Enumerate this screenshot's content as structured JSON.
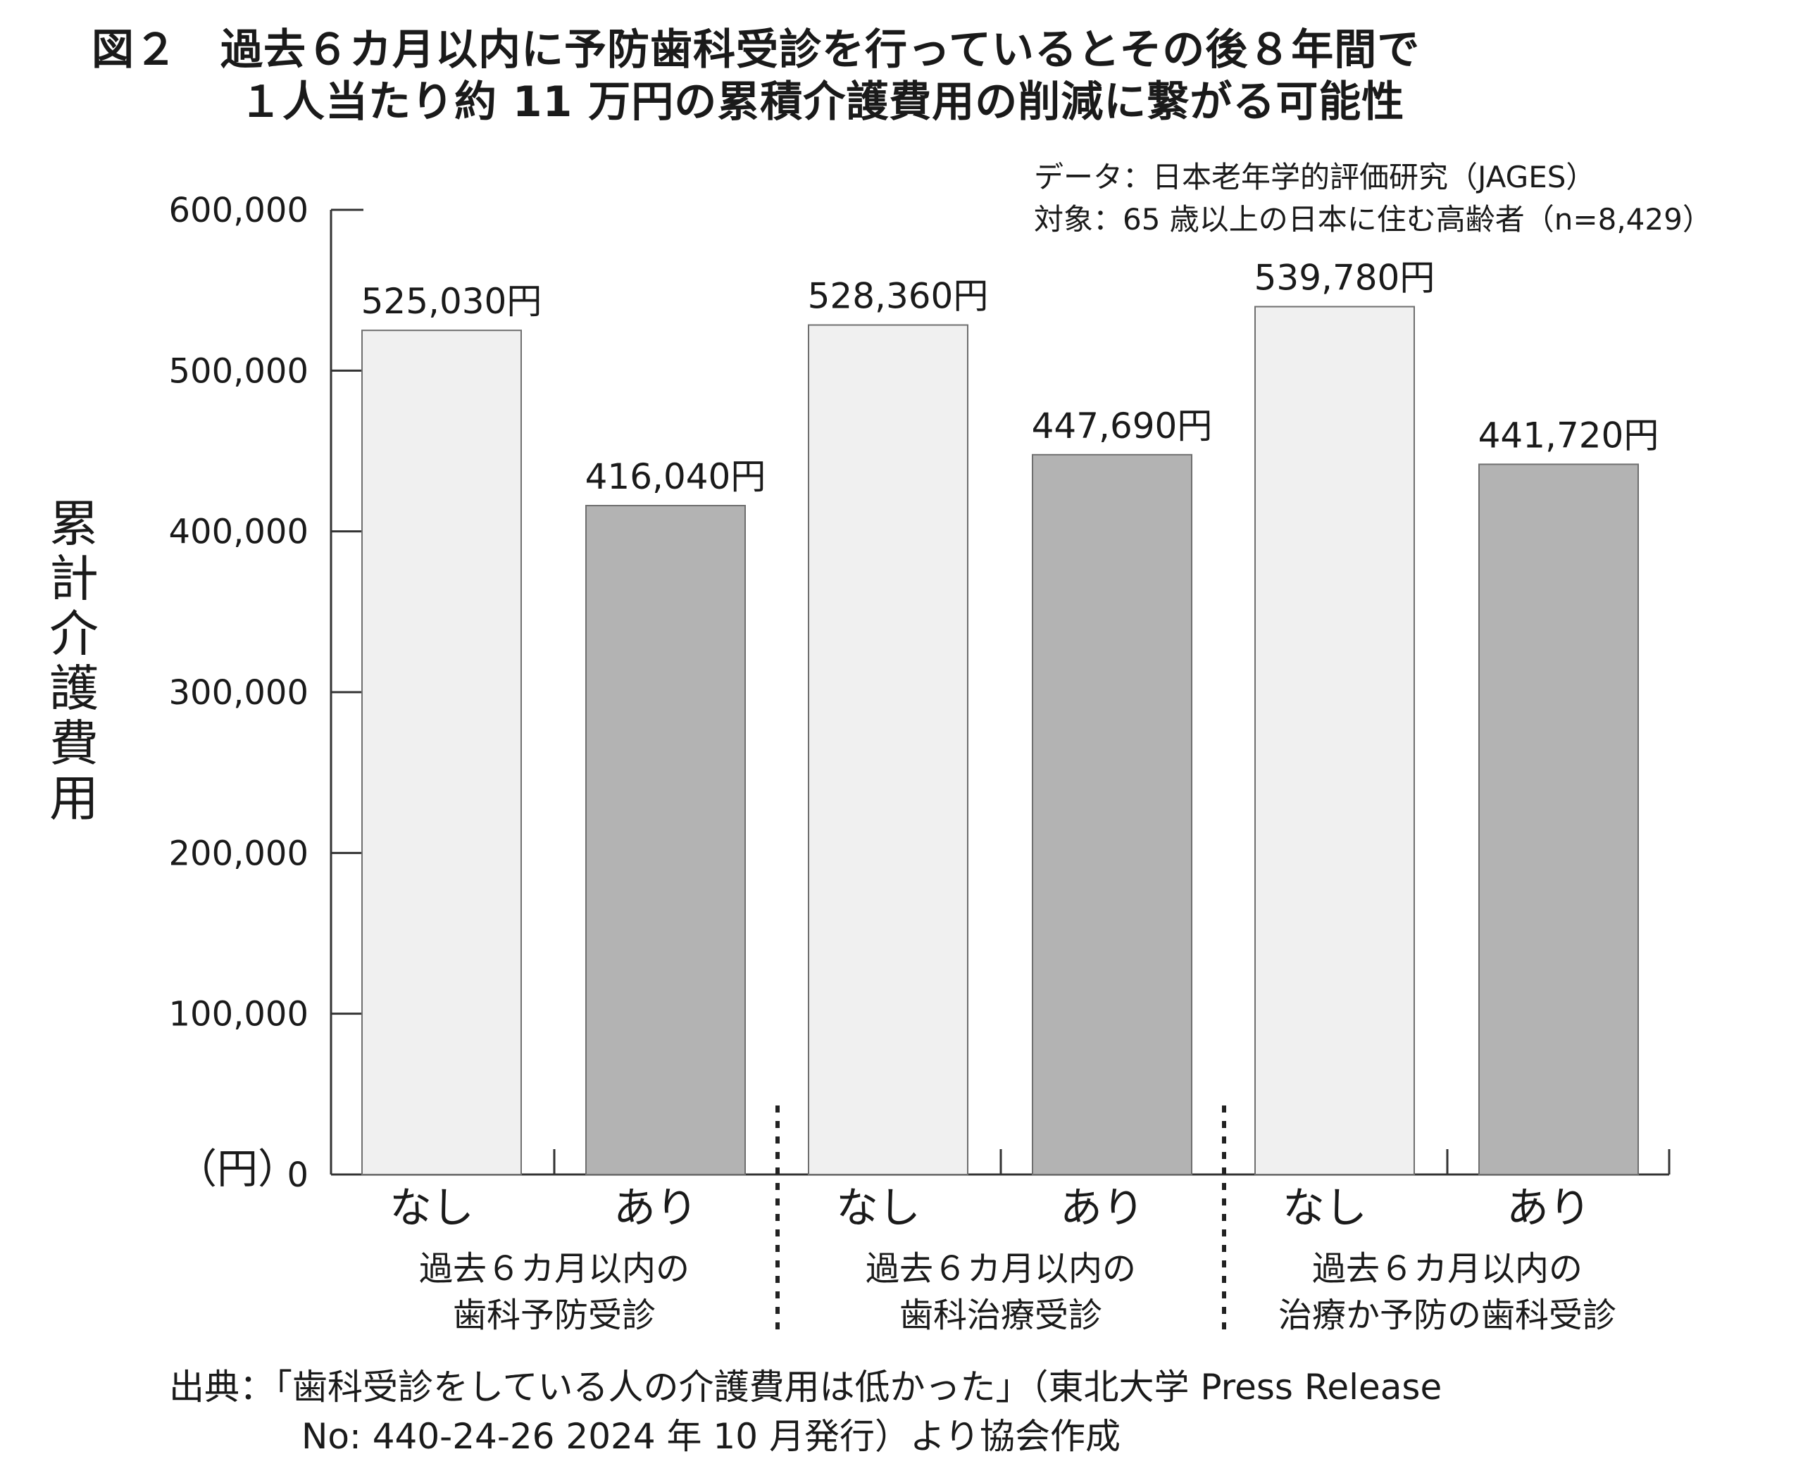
{
  "title": {
    "line1": "図２　過去６カ月以内に予防歯科受診を行っているとその後８年間で",
    "line2": "１人当たり約 11 万円の累積介護費用の削減に繋がる可能性"
  },
  "meta": {
    "data_line": "データ：日本老年学的評価研究（JAGES）",
    "target_line": "対象：65 歳以上の日本に住む高齢者（n=8,429）"
  },
  "source": {
    "line1": "出典：「歯科受診をしている人の介護費用は低かった」（東北大学 Press Release",
    "line2": "No: 440-24-26 2024 年 10 月発行）より協会作成"
  },
  "colors": {
    "nashi_fill": "#f0f0f0",
    "ari_fill": "#b3b3b3",
    "bar_stroke": "#6e6e6e",
    "axis": "#333333"
  },
  "chart_data": {
    "type": "bar",
    "ylabel": "累計介護費用",
    "yunit": "（円）",
    "ylim": [
      0,
      600000
    ],
    "yticks": [
      "0",
      "100,000",
      "200,000",
      "300,000",
      "400,000",
      "500,000",
      "600,000"
    ],
    "grid": false,
    "groups": [
      {
        "label_lines": [
          "過去６カ月以内の",
          "歯科予防受診"
        ],
        "bars": [
          {
            "category": "なし",
            "value": 525030,
            "label": "525,030円"
          },
          {
            "category": "あり",
            "value": 416040,
            "label": "416,040円"
          }
        ]
      },
      {
        "label_lines": [
          "過去６カ月以内の",
          "歯科治療受診"
        ],
        "bars": [
          {
            "category": "なし",
            "value": 528360,
            "label": "528,360円"
          },
          {
            "category": "あり",
            "value": 447690,
            "label": "447,690円"
          }
        ]
      },
      {
        "label_lines": [
          "過去６カ月以内の",
          "治療か予防の歯科受診"
        ],
        "bars": [
          {
            "category": "なし",
            "value": 539780,
            "label": "539,780円"
          },
          {
            "category": "あり",
            "value": 441720,
            "label": "441,720円"
          }
        ]
      }
    ]
  }
}
